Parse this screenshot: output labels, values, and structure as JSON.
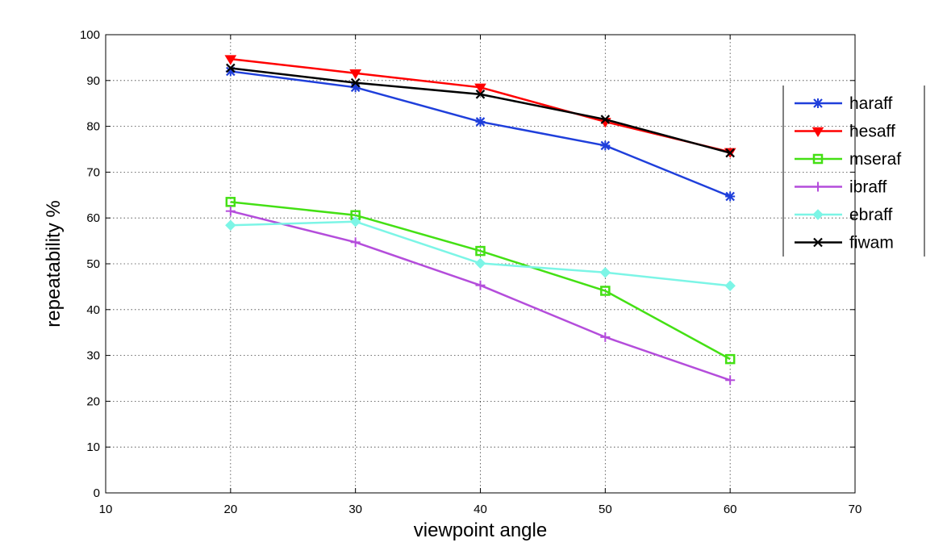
{
  "chart_data": {
    "type": "line",
    "title": "",
    "xlabel": "viewpoint angle",
    "ylabel": "repeatability %",
    "xlim": [
      10,
      70
    ],
    "ylim": [
      0,
      100
    ],
    "x_ticks": [
      10,
      20,
      30,
      40,
      50,
      60,
      70
    ],
    "y_ticks": [
      0,
      10,
      20,
      30,
      40,
      50,
      60,
      70,
      80,
      90,
      100
    ],
    "grid": true,
    "legend_position": "right",
    "x": [
      20,
      30,
      40,
      50,
      60
    ],
    "series": [
      {
        "name": "haraff",
        "color": "#1f3fdb",
        "marker": "star",
        "values": [
          92,
          88.5,
          81,
          75.8,
          64.7
        ]
      },
      {
        "name": "hesaff",
        "color": "#ff0000",
        "marker": "triangle-down",
        "values": [
          94.7,
          91.6,
          88.5,
          81,
          74.4
        ]
      },
      {
        "name": "mseraf",
        "color": "#44e014",
        "marker": "square",
        "values": [
          63.5,
          60.6,
          52.8,
          44.1,
          29.2
        ]
      },
      {
        "name": "ibraff",
        "color": "#b44ddb",
        "marker": "plus",
        "values": [
          61.5,
          54.7,
          45.3,
          34,
          24.6
        ]
      },
      {
        "name": "ebraff",
        "color": "#7cf5e6",
        "marker": "diamond",
        "values": [
          58.4,
          59.2,
          50.1,
          48.1,
          45.2
        ]
      },
      {
        "name": "fiwam",
        "color": "#000000",
        "marker": "x-star",
        "values": [
          92.7,
          89.5,
          87,
          81.5,
          74.2
        ]
      }
    ]
  }
}
